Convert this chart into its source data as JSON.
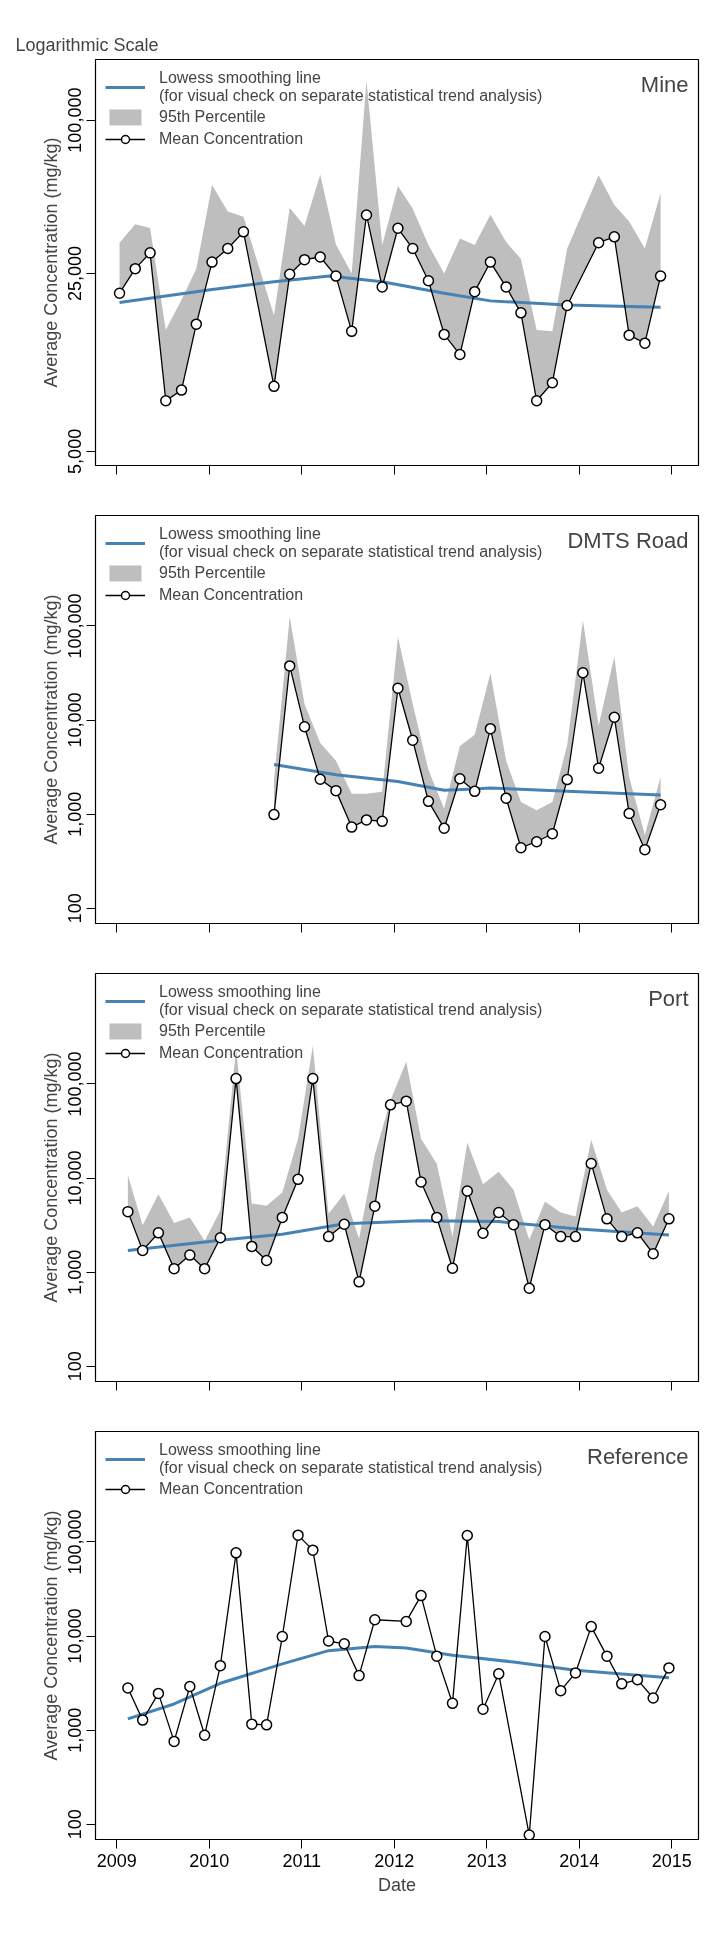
{
  "chart_data": [
    {
      "type": "line",
      "title": "Mine",
      "annotations": [
        "Logarithmic Scale"
      ],
      "ylabel": "Average Concentration (mg/kg)",
      "log": true,
      "grid": false,
      "legend": "top left",
      "tick_labels": "y",
      "xlim": [
        2008.77,
        2015.29
      ],
      "xticks": [
        2009,
        2010,
        2011,
        2012,
        2013,
        2014,
        2015
      ],
      "ylim": [
        4400,
        173000
      ],
      "yticks": [
        {
          "value": 5000,
          "label": "5,000"
        },
        {
          "value": 25000,
          "label": "25,000"
        },
        {
          "value": 100000,
          "label": "100,000"
        }
      ],
      "series": [
        {
          "name": "Lowess smoothing line\n(for visual check on separate statistical trend analysis)",
          "marker": "none",
          "color": "#4682b4",
          "x": [
            2009.03,
            2010.03,
            2010.7,
            2011.3,
            2011.87,
            2012.54,
            2013.04,
            2013.87,
            2014.88
          ],
          "values": [
            19200,
            21600,
            23200,
            24400,
            23200,
            20900,
            19500,
            18800,
            18400
          ]
        },
        {
          "name": "95th Percentile",
          "type": "area",
          "color": "#bebebe",
          "x": [
            2009.03,
            2009.2,
            2009.36,
            2009.53,
            2009.7,
            2009.86,
            2010.03,
            2010.2,
            2010.37,
            2010.7,
            2010.87,
            2011.03,
            2011.2,
            2011.37,
            2011.54,
            2011.7,
            2011.87,
            2012.04,
            2012.2,
            2012.37,
            2012.54,
            2012.71,
            2012.87,
            2013.04,
            2013.21,
            2013.37,
            2013.54,
            2013.71,
            2013.87,
            2014.21,
            2014.38,
            2014.54,
            2014.71,
            2014.88
          ],
          "values": [
            33000,
            39000,
            37700,
            15000,
            19700,
            26100,
            55600,
            43800,
            41700,
            17100,
            45200,
            38400,
            61100,
            32500,
            25000,
            143000,
            32300,
            55100,
            44900,
            32300,
            25000,
            34300,
            32300,
            42500,
            33200,
            28500,
            15000,
            14800,
            31300,
            60800,
            46400,
            40000,
            31300,
            51700
          ]
        },
        {
          "name": "Mean Concentration",
          "marker": "circle",
          "color": "#000000",
          "x": [
            2009.03,
            2009.2,
            2009.36,
            2009.53,
            2009.7,
            2009.86,
            2010.03,
            2010.2,
            2010.37,
            2010.7,
            2010.87,
            2011.03,
            2011.2,
            2011.37,
            2011.54,
            2011.7,
            2011.87,
            2012.04,
            2012.2,
            2012.37,
            2012.54,
            2012.71,
            2012.87,
            2013.04,
            2013.21,
            2013.37,
            2013.54,
            2013.71,
            2013.87,
            2014.21,
            2014.38,
            2014.54,
            2014.71,
            2014.88
          ],
          "values": [
            20900,
            26100,
            30100,
            7900,
            8700,
            15800,
            27700,
            31300,
            36400,
            9000,
            24800,
            28300,
            29000,
            24400,
            14800,
            42400,
            22100,
            37600,
            31300,
            23400,
            14400,
            12000,
            21200,
            27700,
            22100,
            17500,
            7900,
            9300,
            18700,
            33000,
            34800,
            14300,
            13300,
            24400
          ]
        }
      ]
    },
    {
      "type": "line",
      "title": "DMTS Road",
      "ylabel": "Average Concentration (mg/kg)",
      "log": true,
      "grid": false,
      "legend": "top left",
      "tick_labels": "y",
      "xlim": [
        2008.77,
        2015.29
      ],
      "xticks": [
        2009,
        2010,
        2011,
        2012,
        2013,
        2014,
        2015
      ],
      "ylim": [
        69,
        1490000
      ],
      "yticks": [
        {
          "value": 100,
          "label": "100"
        },
        {
          "value": 1000,
          "label": "1,000"
        },
        {
          "value": 10000,
          "label": "10,000"
        },
        {
          "value": 100000,
          "label": "100,000"
        }
      ],
      "series": [
        {
          "name": "Lowess smoothing line\n(for visual check on separate statistical trend analysis)",
          "marker": "none",
          "color": "#4682b4",
          "x": [
            2010.7,
            2011.37,
            2012.04,
            2012.54,
            2012.87,
            2013.04,
            2013.87,
            2014.88
          ],
          "values": [
            3370,
            2630,
            2230,
            1800,
            1850,
            1900,
            1750,
            1600
          ]
        },
        {
          "name": "95th Percentile",
          "type": "area",
          "color": "#bebebe",
          "x": [
            2010.7,
            2010.87,
            2011.03,
            2011.2,
            2011.37,
            2011.54,
            2011.7,
            2011.87,
            2012.04,
            2012.2,
            2012.37,
            2012.54,
            2012.71,
            2012.87,
            2013.04,
            2013.21,
            2013.37,
            2013.54,
            2013.71,
            2013.87,
            2014.04,
            2014.21,
            2014.38,
            2014.54,
            2014.71,
            2014.88
          ],
          "values": [
            2300,
            125000,
            14800,
            5700,
            3700,
            1650,
            1650,
            1730,
            76600,
            14800,
            2950,
            1140,
            5300,
            7000,
            31500,
            3700,
            1350,
            1100,
            1350,
            5400,
            115000,
            8700,
            47400,
            2490,
            600,
            2490
          ]
        },
        {
          "name": "Mean Concentration",
          "marker": "circle",
          "color": "#000000",
          "x": [
            2010.7,
            2010.87,
            2011.03,
            2011.2,
            2011.37,
            2011.54,
            2011.7,
            2011.87,
            2012.04,
            2012.2,
            2012.37,
            2012.54,
            2012.71,
            2012.87,
            2013.04,
            2013.21,
            2013.37,
            2013.54,
            2013.71,
            2013.87,
            2014.04,
            2014.21,
            2014.38,
            2014.54,
            2014.71,
            2014.88
          ],
          "values": [
            990,
            37600,
            8500,
            2350,
            1780,
            730,
            870,
            840,
            21800,
            6100,
            1370,
            710,
            2380,
            1750,
            8100,
            1480,
            440,
            510,
            620,
            2330,
            31800,
            3080,
            10700,
            1020,
            420,
            1260
          ]
        }
      ]
    },
    {
      "type": "line",
      "title": "Port",
      "ylabel": "Average Concentration (mg/kg)",
      "log": true,
      "grid": false,
      "legend": "top left",
      "tick_labels": "y",
      "xlim": [
        2008.77,
        2015.29
      ],
      "xticks": [
        2009,
        2010,
        2011,
        2012,
        2013,
        2014,
        2015
      ],
      "ylim": [
        69,
        1490000
      ],
      "yticks": [
        {
          "value": 100,
          "label": "100"
        },
        {
          "value": 1000,
          "label": "1,000"
        },
        {
          "value": 10000,
          "label": "10,000"
        },
        {
          "value": 100000,
          "label": "100,000"
        }
      ],
      "series": [
        {
          "name": "Lowess smoothing line\n(for visual check on separate statistical trend analysis)",
          "marker": "none",
          "color": "#4682b4",
          "x": [
            2009.12,
            2010.12,
            2010.79,
            2011.46,
            2012.29,
            2013.13,
            2013.96,
            2014.97
          ],
          "values": [
            1700,
            2190,
            2530,
            3270,
            3530,
            3450,
            2890,
            2480
          ]
        },
        {
          "name": "95th Percentile",
          "type": "area",
          "color": "#bebebe",
          "x": [
            2009.12,
            2009.28,
            2009.45,
            2009.62,
            2009.79,
            2009.95,
            2010.12,
            2010.29,
            2010.46,
            2010.62,
            2010.79,
            2010.96,
            2011.12,
            2011.29,
            2011.46,
            2011.62,
            2011.79,
            2011.96,
            2012.13,
            2012.29,
            2012.46,
            2012.63,
            2012.79,
            2012.96,
            2013.13,
            2013.29,
            2013.46,
            2013.63,
            2013.8,
            2013.96,
            2014.13,
            2014.3,
            2014.46,
            2014.63,
            2014.8,
            2014.97
          ],
          "values": [
            10700,
            3160,
            6730,
            3340,
            3820,
            2140,
            4510,
            240000,
            5380,
            5090,
            7030,
            26100,
            254000,
            4170,
            6870,
            2270,
            17700,
            67000,
            172000,
            26100,
            14200,
            2390,
            23900,
            8590,
            11700,
            7520,
            2210,
            5630,
            4310,
            3900,
            25500,
            7520,
            4310,
            5030,
            3060,
            7280
          ]
        },
        {
          "name": "Mean Concentration",
          "marker": "circle",
          "color": "#000000",
          "x": [
            2009.12,
            2009.28,
            2009.45,
            2009.62,
            2009.79,
            2009.95,
            2010.12,
            2010.29,
            2010.46,
            2010.62,
            2010.79,
            2010.96,
            2011.12,
            2011.29,
            2011.46,
            2011.62,
            2011.79,
            2011.96,
            2012.13,
            2012.29,
            2012.46,
            2012.63,
            2012.79,
            2012.96,
            2013.13,
            2013.29,
            2013.46,
            2013.63,
            2013.8,
            2013.96,
            2014.13,
            2014.3,
            2014.46,
            2014.63,
            2014.8,
            2014.97
          ],
          "values": [
            4400,
            1700,
            2620,
            1090,
            1520,
            1090,
            2320,
            114000,
            1880,
            1330,
            3820,
            9700,
            114000,
            2390,
            3230,
            790,
            5030,
            60000,
            65600,
            9080,
            3820,
            1100,
            7280,
            2590,
            4310,
            3200,
            675,
            3200,
            2390,
            2390,
            14300,
            3690,
            2390,
            2620,
            1570,
            3690
          ]
        }
      ]
    },
    {
      "type": "line",
      "title": "Reference",
      "xlabel": "Date",
      "ylabel": "Average Concentration (mg/kg)",
      "log": true,
      "grid": false,
      "legend": "top left",
      "xlim": [
        2008.77,
        2015.29
      ],
      "xticks": [
        2009,
        2010,
        2011,
        2012,
        2013,
        2014,
        2015
      ],
      "ylim": [
        69,
        1490000
      ],
      "yticks": [
        {
          "value": 100,
          "label": "100"
        },
        {
          "value": 1000,
          "label": "1,000"
        },
        {
          "value": 10000,
          "label": "10,000"
        },
        {
          "value": 100000,
          "label": "100,000"
        }
      ],
      "series": [
        {
          "name": "Lowess smoothing line\n(for visual check on separate statistical trend analysis)",
          "marker": "none",
          "color": "#4682b4",
          "x": [
            2009.12,
            2009.62,
            2010.12,
            2010.79,
            2011.29,
            2011.79,
            2012.13,
            2012.63,
            2013.29,
            2013.96,
            2014.97
          ],
          "values": [
            1320,
            1900,
            3150,
            5070,
            7000,
            7740,
            7480,
            6260,
            5300,
            4340,
            3600
          ]
        },
        {
          "name": "Mean Concentration",
          "marker": "circle",
          "color": "#000000",
          "x": [
            2009.12,
            2009.28,
            2009.45,
            2009.62,
            2009.79,
            2009.95,
            2010.12,
            2010.29,
            2010.46,
            2010.62,
            2010.79,
            2010.96,
            2011.12,
            2011.29,
            2011.46,
            2011.62,
            2011.79,
            2012.13,
            2012.29,
            2012.46,
            2012.63,
            2012.79,
            2012.96,
            2013.13,
            2013.46,
            2013.63,
            2013.8,
            2013.96,
            2014.13,
            2014.3,
            2014.46,
            2014.63,
            2014.8,
            2014.97
          ],
          "values": [
            2810,
            1280,
            2460,
            760,
            2910,
            885,
            4850,
            76600,
            1160,
            1140,
            9890,
            118000,
            81800,
            8860,
            8280,
            3800,
            14900,
            14300,
            26900,
            6120,
            1930,
            117000,
            1670,
            3970,
            77,
            9890,
            2630,
            4060,
            12600,
            6120,
            3110,
            3440,
            2200,
            4590
          ]
        }
      ]
    }
  ]
}
